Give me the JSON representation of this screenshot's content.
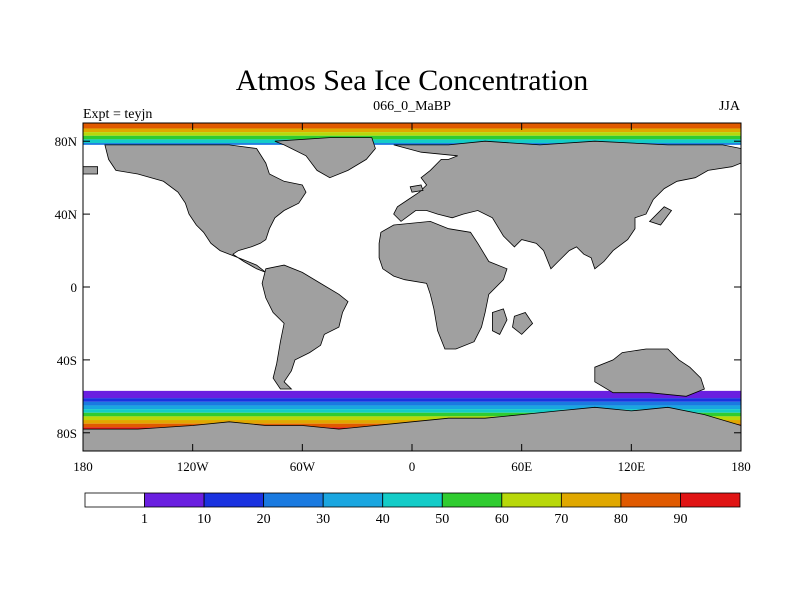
{
  "chart_data": {
    "type": "heatmap",
    "title": "Atmos Sea Ice Concentration",
    "subtitle_left": "Expt = teyjn",
    "subtitle_center": "066_0_MaBP",
    "subtitle_right": "JJA",
    "x_range": [
      -180,
      180
    ],
    "y_range": [
      -90,
      90
    ],
    "x_ticks": [
      {
        "value": -180,
        "label": "180"
      },
      {
        "value": -120,
        "label": "120W"
      },
      {
        "value": -60,
        "label": "60W"
      },
      {
        "value": 0,
        "label": "0"
      },
      {
        "value": 60,
        "label": "60E"
      },
      {
        "value": 120,
        "label": "120E"
      },
      {
        "value": 180,
        "label": "180"
      }
    ],
    "y_ticks": [
      {
        "value": 80,
        "label": "80N"
      },
      {
        "value": 40,
        "label": "40N"
      },
      {
        "value": 0,
        "label": "0"
      },
      {
        "value": -40,
        "label": "40S"
      },
      {
        "value": -80,
        "label": "80S"
      }
    ],
    "colorbar": {
      "levels": [
        1,
        10,
        20,
        30,
        40,
        50,
        60,
        70,
        80,
        90
      ],
      "labels": [
        "1",
        "10",
        "20",
        "30",
        "40",
        "50",
        "60",
        "70",
        "80",
        "90"
      ],
      "colors": [
        "#ffffff",
        "#6a1fe0",
        "#1a32e0",
        "#1a7ae0",
        "#1aa6e0",
        "#14ccc8",
        "#30cc30",
        "#b8d80a",
        "#e0a800",
        "#e05a00",
        "#e01414"
      ]
    },
    "land_color": "#a0a0a0",
    "north_ice_bands": [
      {
        "lat_max": 90,
        "lat_min": 87,
        "value": 85
      },
      {
        "lat_max": 87,
        "lat_min": 85,
        "value": 75
      },
      {
        "lat_max": 85,
        "lat_min": 83,
        "value": 65
      },
      {
        "lat_max": 83,
        "lat_min": 81,
        "value": 55
      },
      {
        "lat_max": 81,
        "lat_min": 79,
        "value": 45
      },
      {
        "lat_max": 79,
        "lat_min": 78,
        "value": 25
      }
    ],
    "south_ice_bands": [
      {
        "lat_max": -57,
        "lat_min": -61,
        "value": 5
      },
      {
        "lat_max": -61,
        "lat_min": -63,
        "value": 15
      },
      {
        "lat_max": -63,
        "lat_min": -65,
        "value": 25
      },
      {
        "lat_max": -65,
        "lat_min": -67,
        "value": 35
      },
      {
        "lat_max": -67,
        "lat_min": -69,
        "value": 45
      },
      {
        "lat_max": -69,
        "lat_min": -71,
        "value": 55
      },
      {
        "lat_max": -71,
        "lat_min": -73,
        "value": 65
      },
      {
        "lat_max": -73,
        "lat_min": -75,
        "value": 75
      },
      {
        "lat_max": -75,
        "lat_min": -77,
        "value": 85
      },
      {
        "lat_max": -77,
        "lat_min": -90,
        "value": 95
      }
    ],
    "land_polygons": [
      {
        "name": "north-america",
        "points": [
          [
            -168,
            78
          ],
          [
            -150,
            78
          ],
          [
            -120,
            78
          ],
          [
            -100,
            78
          ],
          [
            -85,
            76
          ],
          [
            -80,
            68
          ],
          [
            -78,
            62
          ],
          [
            -70,
            58
          ],
          [
            -60,
            56
          ],
          [
            -58,
            52
          ],
          [
            -62,
            46
          ],
          [
            -70,
            42
          ],
          [
            -75,
            38
          ],
          [
            -78,
            32
          ],
          [
            -80,
            26
          ],
          [
            -83,
            24
          ],
          [
            -88,
            22
          ],
          [
            -95,
            20
          ],
          [
            -98,
            18
          ],
          [
            -92,
            14
          ],
          [
            -85,
            10
          ],
          [
            -80,
            8
          ],
          [
            -85,
            12
          ],
          [
            -95,
            16
          ],
          [
            -105,
            20
          ],
          [
            -110,
            24
          ],
          [
            -114,
            30
          ],
          [
            -118,
            34
          ],
          [
            -122,
            40
          ],
          [
            -124,
            46
          ],
          [
            -128,
            52
          ],
          [
            -136,
            58
          ],
          [
            -150,
            62
          ],
          [
            -162,
            64
          ],
          [
            -166,
            70
          ]
        ]
      },
      {
        "name": "greenland",
        "points": [
          [
            -75,
            80
          ],
          [
            -45,
            82
          ],
          [
            -22,
            82
          ],
          [
            -20,
            76
          ],
          [
            -25,
            70
          ],
          [
            -35,
            64
          ],
          [
            -45,
            60
          ],
          [
            -52,
            64
          ],
          [
            -58,
            72
          ],
          [
            -70,
            78
          ]
        ]
      },
      {
        "name": "eurasia",
        "points": [
          [
            -10,
            78
          ],
          [
            20,
            78
          ],
          [
            40,
            80
          ],
          [
            70,
            78
          ],
          [
            100,
            80
          ],
          [
            140,
            78
          ],
          [
            170,
            78
          ],
          [
            180,
            76
          ],
          [
            180,
            68
          ],
          [
            175,
            66
          ],
          [
            162,
            64
          ],
          [
            155,
            60
          ],
          [
            145,
            58
          ],
          [
            138,
            54
          ],
          [
            132,
            48
          ],
          [
            128,
            40
          ],
          [
            122,
            38
          ],
          [
            122,
            32
          ],
          [
            118,
            26
          ],
          [
            110,
            20
          ],
          [
            105,
            14
          ],
          [
            100,
            10
          ],
          [
            98,
            16
          ],
          [
            94,
            18
          ],
          [
            90,
            22
          ],
          [
            86,
            20
          ],
          [
            80,
            14
          ],
          [
            76,
            10
          ],
          [
            72,
            20
          ],
          [
            68,
            24
          ],
          [
            60,
            26
          ],
          [
            56,
            22
          ],
          [
            50,
            28
          ],
          [
            44,
            38
          ],
          [
            36,
            42
          ],
          [
            28,
            40
          ],
          [
            22,
            38
          ],
          [
            14,
            40
          ],
          [
            8,
            42
          ],
          [
            2,
            42
          ],
          [
            -6,
            36
          ],
          [
            -10,
            40
          ],
          [
            -8,
            44
          ],
          [
            -2,
            48
          ],
          [
            4,
            52
          ],
          [
            8,
            56
          ],
          [
            5,
            60
          ],
          [
            10,
            64
          ],
          [
            16,
            70
          ],
          [
            20,
            70
          ],
          [
            25,
            72
          ],
          [
            5,
            74
          ]
        ]
      },
      {
        "name": "africa",
        "points": [
          [
            -17,
            30
          ],
          [
            -10,
            34
          ],
          [
            10,
            36
          ],
          [
            20,
            32
          ],
          [
            32,
            30
          ],
          [
            36,
            24
          ],
          [
            42,
            14
          ],
          [
            52,
            10
          ],
          [
            50,
            4
          ],
          [
            42,
            -4
          ],
          [
            40,
            -14
          ],
          [
            38,
            -22
          ],
          [
            34,
            -30
          ],
          [
            24,
            -34
          ],
          [
            18,
            -34
          ],
          [
            14,
            -24
          ],
          [
            12,
            -12
          ],
          [
            10,
            -4
          ],
          [
            8,
            2
          ],
          [
            -4,
            4
          ],
          [
            -10,
            6
          ],
          [
            -16,
            10
          ],
          [
            -18,
            16
          ],
          [
            -18,
            24
          ]
        ]
      },
      {
        "name": "south-america",
        "points": [
          [
            -80,
            10
          ],
          [
            -70,
            12
          ],
          [
            -60,
            8
          ],
          [
            -50,
            2
          ],
          [
            -40,
            -4
          ],
          [
            -35,
            -8
          ],
          [
            -38,
            -14
          ],
          [
            -40,
            -22
          ],
          [
            -48,
            -26
          ],
          [
            -50,
            -32
          ],
          [
            -56,
            -36
          ],
          [
            -64,
            -40
          ],
          [
            -66,
            -46
          ],
          [
            -70,
            -52
          ],
          [
            -66,
            -56
          ],
          [
            -72,
            -56
          ],
          [
            -76,
            -50
          ],
          [
            -74,
            -42
          ],
          [
            -72,
            -30
          ],
          [
            -70,
            -20
          ],
          [
            -76,
            -14
          ],
          [
            -80,
            -6
          ],
          [
            -82,
            2
          ]
        ]
      },
      {
        "name": "australia",
        "points": [
          [
            100,
            -44
          ],
          [
            100,
            -52
          ],
          [
            110,
            -58
          ],
          [
            130,
            -58
          ],
          [
            150,
            -60
          ],
          [
            160,
            -56
          ],
          [
            158,
            -50
          ],
          [
            152,
            -44
          ],
          [
            146,
            -40
          ],
          [
            140,
            -34
          ],
          [
            128,
            -34
          ],
          [
            115,
            -36
          ],
          [
            110,
            -40
          ]
        ]
      },
      {
        "name": "madagascar",
        "points": [
          [
            44,
            -14
          ],
          [
            50,
            -12
          ],
          [
            52,
            -18
          ],
          [
            48,
            -26
          ],
          [
            44,
            -24
          ]
        ]
      },
      {
        "name": "india-sub",
        "points": [
          [
            56,
            -16
          ],
          [
            62,
            -14
          ],
          [
            66,
            -20
          ],
          [
            60,
            -26
          ],
          [
            55,
            -22
          ]
        ]
      },
      {
        "name": "antarctica",
        "points": [
          [
            -180,
            -78
          ],
          [
            -150,
            -78
          ],
          [
            -120,
            -76
          ],
          [
            -100,
            -74
          ],
          [
            -80,
            -76
          ],
          [
            -60,
            -76
          ],
          [
            -40,
            -78
          ],
          [
            -20,
            -76
          ],
          [
            0,
            -74
          ],
          [
            20,
            -72
          ],
          [
            40,
            -72
          ],
          [
            60,
            -70
          ],
          [
            80,
            -68
          ],
          [
            100,
            -66
          ],
          [
            120,
            -68
          ],
          [
            140,
            -66
          ],
          [
            160,
            -70
          ],
          [
            180,
            -76
          ],
          [
            180,
            -90
          ],
          [
            -180,
            -90
          ]
        ]
      },
      {
        "name": "arctic-island-1",
        "points": [
          [
            -1,
            55
          ],
          [
            5,
            56
          ],
          [
            6,
            53
          ],
          [
            0,
            52
          ]
        ]
      },
      {
        "name": "japan",
        "points": [
          [
            130,
            36
          ],
          [
            138,
            44
          ],
          [
            142,
            42
          ],
          [
            136,
            34
          ]
        ]
      },
      {
        "name": "bering-island",
        "points": [
          [
            -180,
            66
          ],
          [
            -172,
            66
          ],
          [
            -172,
            62
          ],
          [
            -180,
            62
          ]
        ]
      }
    ]
  }
}
